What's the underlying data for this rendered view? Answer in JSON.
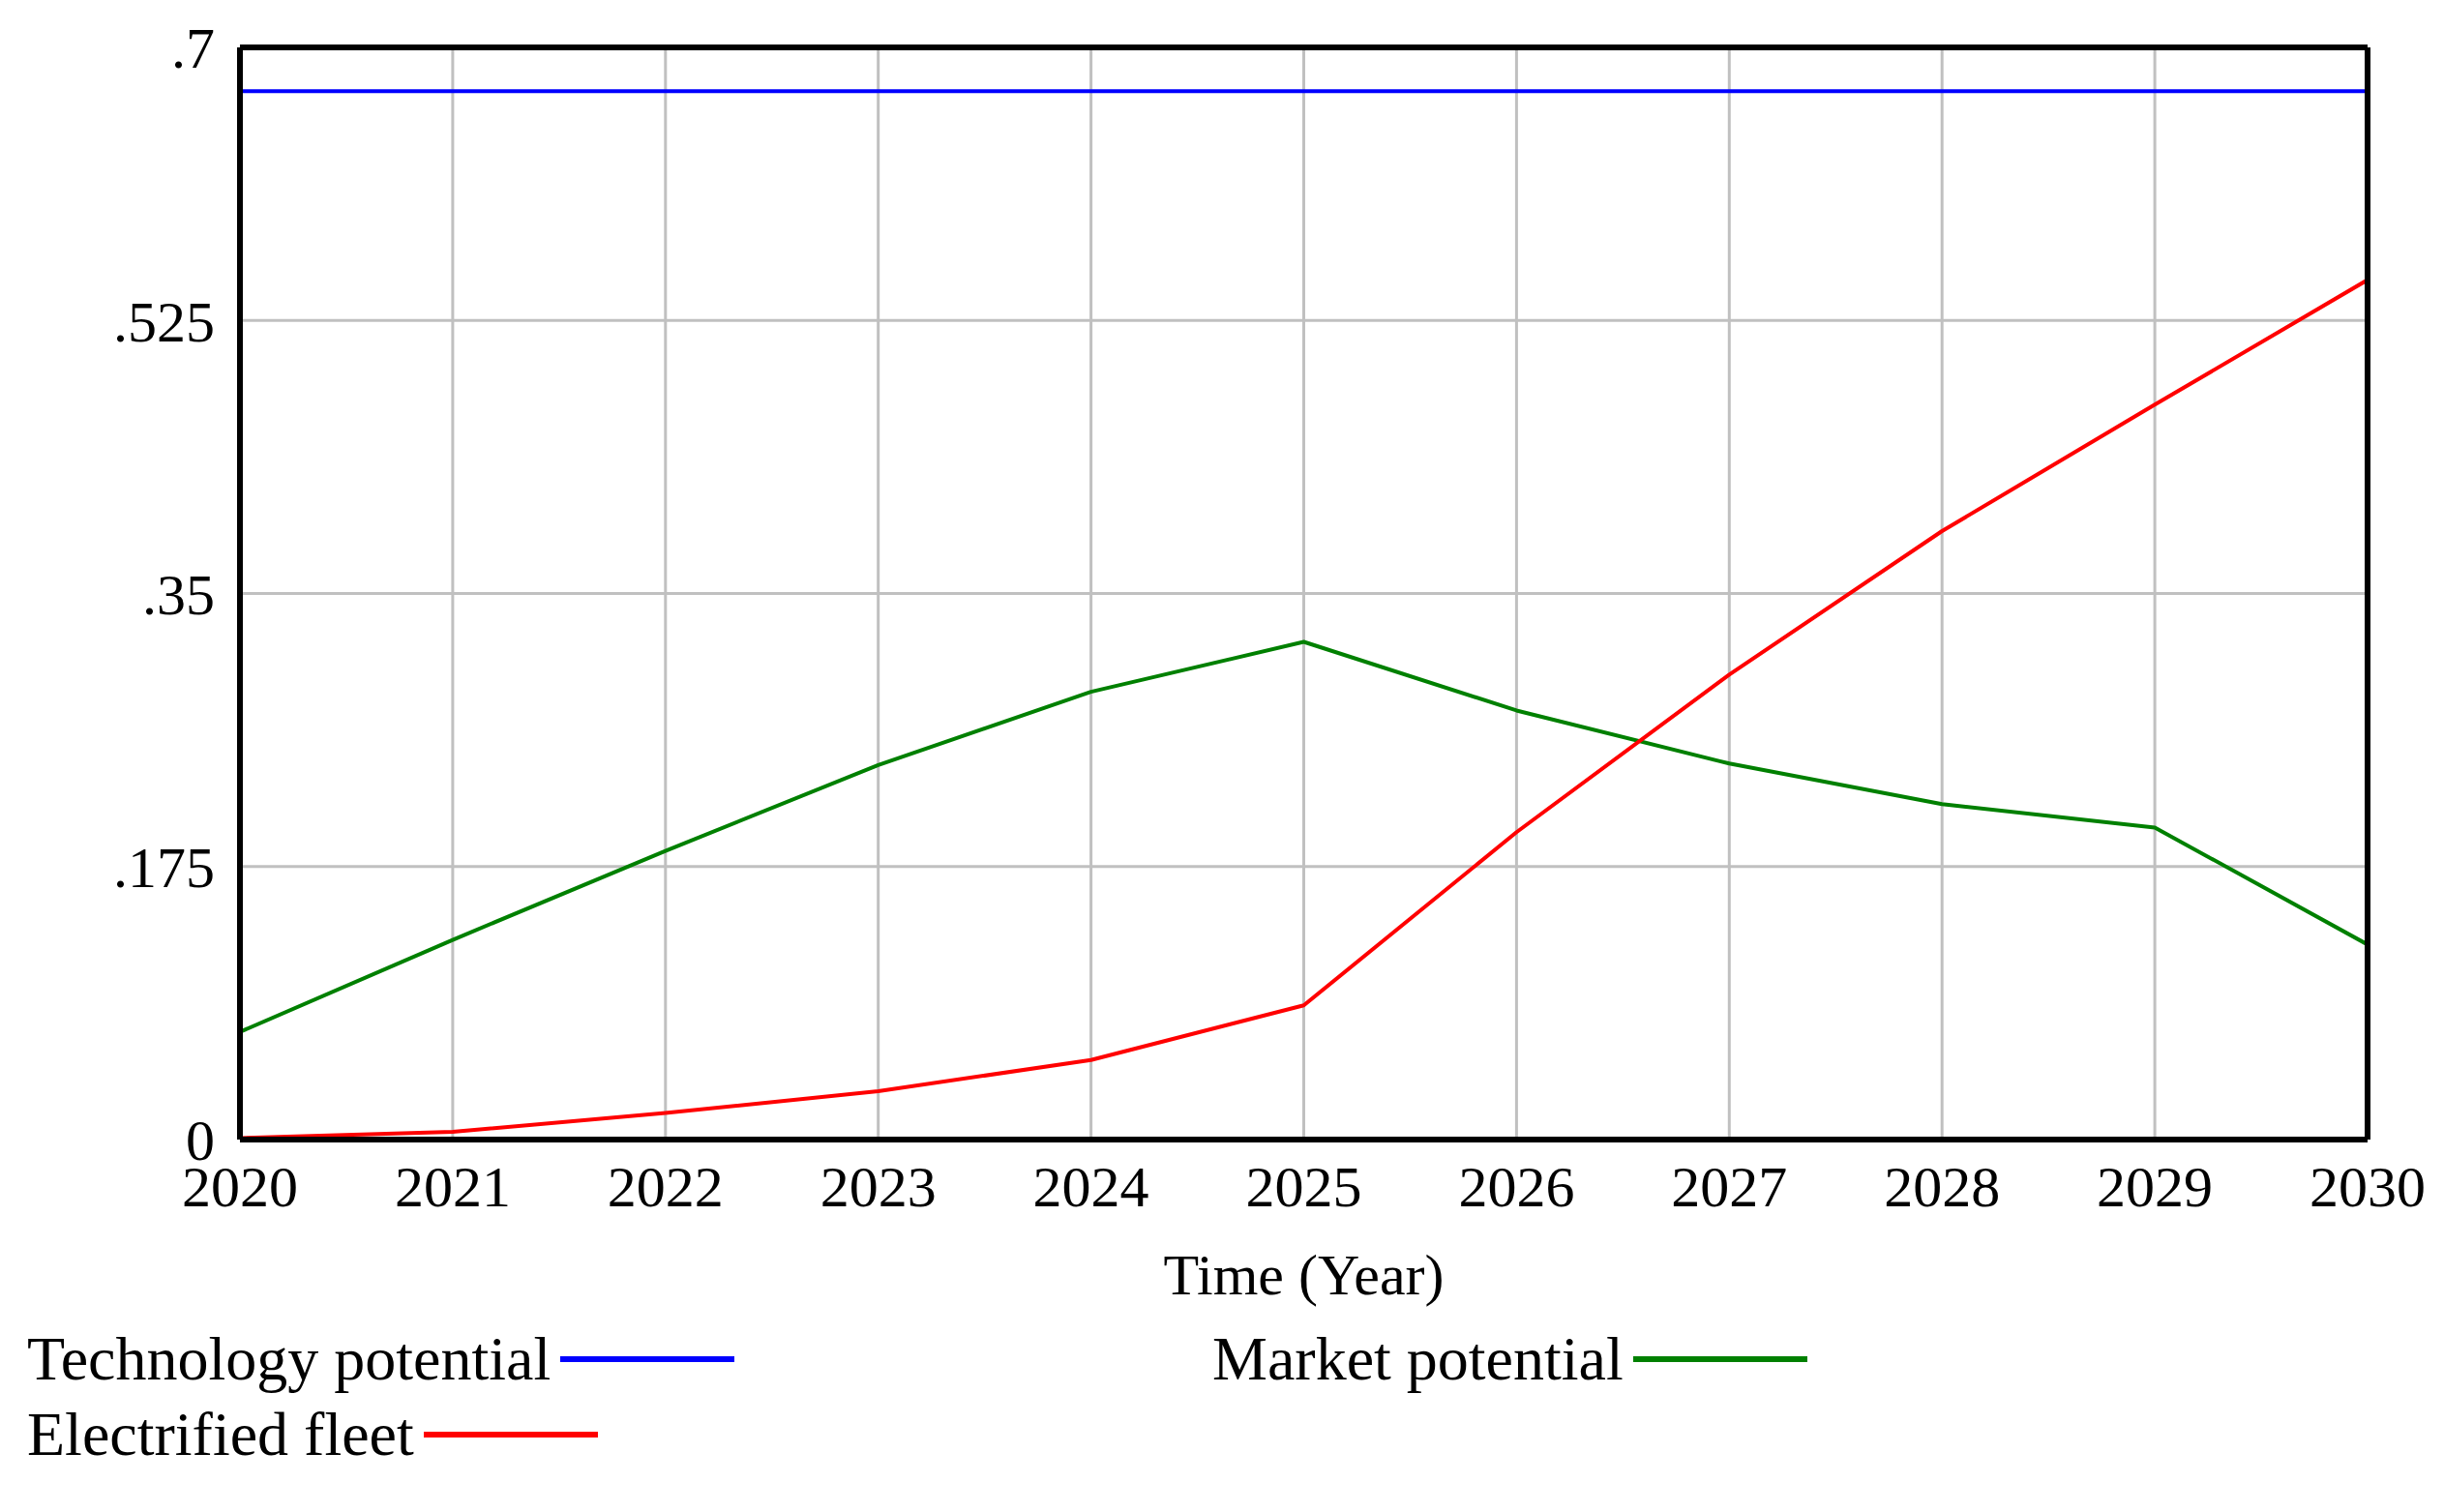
{
  "chart_data": {
    "type": "line",
    "xlabel": "Time (Year)",
    "x": [
      2020,
      2021,
      2022,
      2023,
      2024,
      2025,
      2026,
      2027,
      2028,
      2029,
      2030
    ],
    "xlim": [
      2020,
      2030
    ],
    "xticks": [
      2020,
      2021,
      2022,
      2023,
      2024,
      2025,
      2026,
      2027,
      2028,
      2029,
      2030
    ],
    "ylim": [
      0,
      0.7
    ],
    "yticks": [
      {
        "value": 0,
        "label": "0"
      },
      {
        "value": 0.175,
        "label": ".175"
      },
      {
        "value": 0.35,
        "label": ".35"
      },
      {
        "value": 0.525,
        "label": ".525"
      },
      {
        "value": 0.7,
        "label": ".7"
      }
    ],
    "grid": true,
    "legend": "bottom",
    "marker": "none",
    "line_style": "solid",
    "series": [
      {
        "name": "Technology potential",
        "color": "#0000ff",
        "values": [
          0.672,
          0.672,
          0.672,
          0.672,
          0.672,
          0.672,
          0.672,
          0.672,
          0.672,
          0.672,
          0.672
        ]
      },
      {
        "name": "Market potential",
        "color": "#008000",
        "values": [
          0.069,
          0.128,
          0.185,
          0.24,
          0.287,
          0.319,
          0.275,
          0.241,
          0.215,
          0.2,
          0.125
        ]
      },
      {
        "name": "Electrified fleet",
        "color": "#ff0000",
        "values": [
          0.001,
          0.005,
          0.017,
          0.031,
          0.051,
          0.086,
          0.197,
          0.298,
          0.39,
          0.471,
          0.551
        ]
      }
    ]
  }
}
